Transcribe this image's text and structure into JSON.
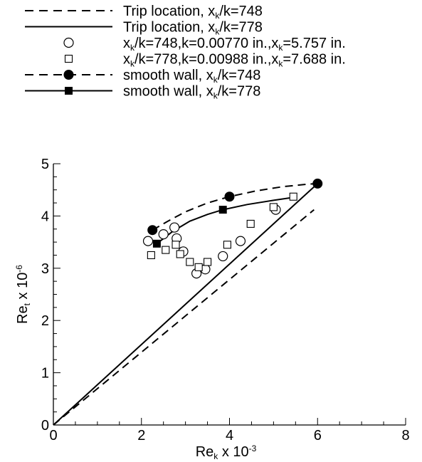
{
  "chart_data": {
    "type": "scatter",
    "xlabel": {
      "base": "Re",
      "sub": "k",
      "mid": " x 10",
      "sup": "-3"
    },
    "ylabel": {
      "base": "Re",
      "sub": "t",
      "mid": " x 10",
      "sup": "-6"
    },
    "xlim": [
      0,
      8
    ],
    "ylim": [
      0,
      5
    ],
    "xticks": [
      0,
      2,
      4,
      6,
      8
    ],
    "yticks": [
      0,
      1,
      2,
      3,
      4,
      5
    ],
    "xminor_step": 0.5,
    "yminor_step": 0.25,
    "grid": false,
    "legend_position": "top",
    "legend": [
      {
        "parts": [
          [
            "Trip location, x",
            ""
          ],
          [
            "k",
            "sub"
          ],
          [
            "/k=748",
            ""
          ]
        ]
      },
      {
        "parts": [
          [
            "Trip location, x",
            ""
          ],
          [
            "k",
            "sub"
          ],
          [
            "/k=778",
            ""
          ]
        ]
      },
      {
        "parts": [
          [
            "x",
            ""
          ],
          [
            "k",
            "sub"
          ],
          [
            "/k=748,k=0.00770 in.,x",
            ""
          ],
          [
            "k",
            "sub"
          ],
          [
            "=5.757 in.",
            ""
          ]
        ]
      },
      {
        "parts": [
          [
            "x",
            ""
          ],
          [
            "k",
            "sub"
          ],
          [
            "/k=778,k=0.00988 in.,x",
            ""
          ],
          [
            "k",
            "sub"
          ],
          [
            "=7.688 in.",
            ""
          ]
        ]
      },
      {
        "parts": [
          [
            "smooth wall, x",
            ""
          ],
          [
            "k",
            "sub"
          ],
          [
            "/k=748",
            ""
          ]
        ]
      },
      {
        "parts": [
          [
            "smooth wall, x",
            ""
          ],
          [
            "k",
            "sub"
          ],
          [
            "/k=778",
            ""
          ]
        ]
      }
    ],
    "series": [
      {
        "legend_index": 0,
        "style": "line",
        "dash": true,
        "marker": "none",
        "points": [
          [
            0,
            0
          ],
          [
            5.92,
            4.12
          ]
        ]
      },
      {
        "legend_index": 1,
        "style": "line",
        "dash": false,
        "marker": "none",
        "points": [
          [
            0,
            0
          ],
          [
            6,
            4.62
          ]
        ]
      },
      {
        "legend_index": 2,
        "style": "markers",
        "marker": "circle-open",
        "points": [
          [
            2.15,
            3.52
          ],
          [
            2.5,
            3.65
          ],
          [
            2.75,
            3.78
          ],
          [
            2.8,
            3.57
          ],
          [
            2.95,
            3.32
          ],
          [
            3.25,
            2.9
          ],
          [
            3.45,
            2.98
          ],
          [
            3.85,
            3.23
          ],
          [
            4.25,
            3.52
          ],
          [
            5.05,
            4.12
          ]
        ]
      },
      {
        "legend_index": 3,
        "style": "markers",
        "marker": "square-open",
        "points": [
          [
            2.22,
            3.25
          ],
          [
            2.55,
            3.35
          ],
          [
            2.78,
            3.45
          ],
          [
            2.88,
            3.27
          ],
          [
            3.1,
            3.12
          ],
          [
            3.3,
            3.02
          ],
          [
            3.5,
            3.12
          ],
          [
            3.95,
            3.45
          ],
          [
            4.48,
            3.85
          ],
          [
            5.0,
            4.17
          ],
          [
            5.45,
            4.37
          ]
        ]
      },
      {
        "legend_index": 4,
        "style": "line",
        "dash": true,
        "marker": "circle-filled",
        "points": [
          [
            2.25,
            3.73
          ],
          [
            4.0,
            4.37
          ],
          [
            6.0,
            4.62
          ]
        ],
        "curve": [
          [
            2.25,
            3.73
          ],
          [
            2.6,
            3.9
          ],
          [
            3.0,
            4.08
          ],
          [
            3.5,
            4.25
          ],
          [
            4.0,
            4.37
          ],
          [
            4.6,
            4.48
          ],
          [
            5.2,
            4.56
          ],
          [
            5.8,
            4.61
          ],
          [
            6.0,
            4.62
          ]
        ]
      },
      {
        "legend_index": 5,
        "style": "line",
        "dash": false,
        "marker": "square-filled",
        "points": [
          [
            2.35,
            3.47
          ],
          [
            3.85,
            4.12
          ]
        ],
        "curve": [
          [
            2.35,
            3.47
          ],
          [
            2.7,
            3.7
          ],
          [
            3.1,
            3.9
          ],
          [
            3.5,
            4.03
          ],
          [
            3.85,
            4.12
          ],
          [
            4.4,
            4.22
          ],
          [
            5.0,
            4.3
          ],
          [
            5.4,
            4.35
          ]
        ]
      }
    ]
  }
}
